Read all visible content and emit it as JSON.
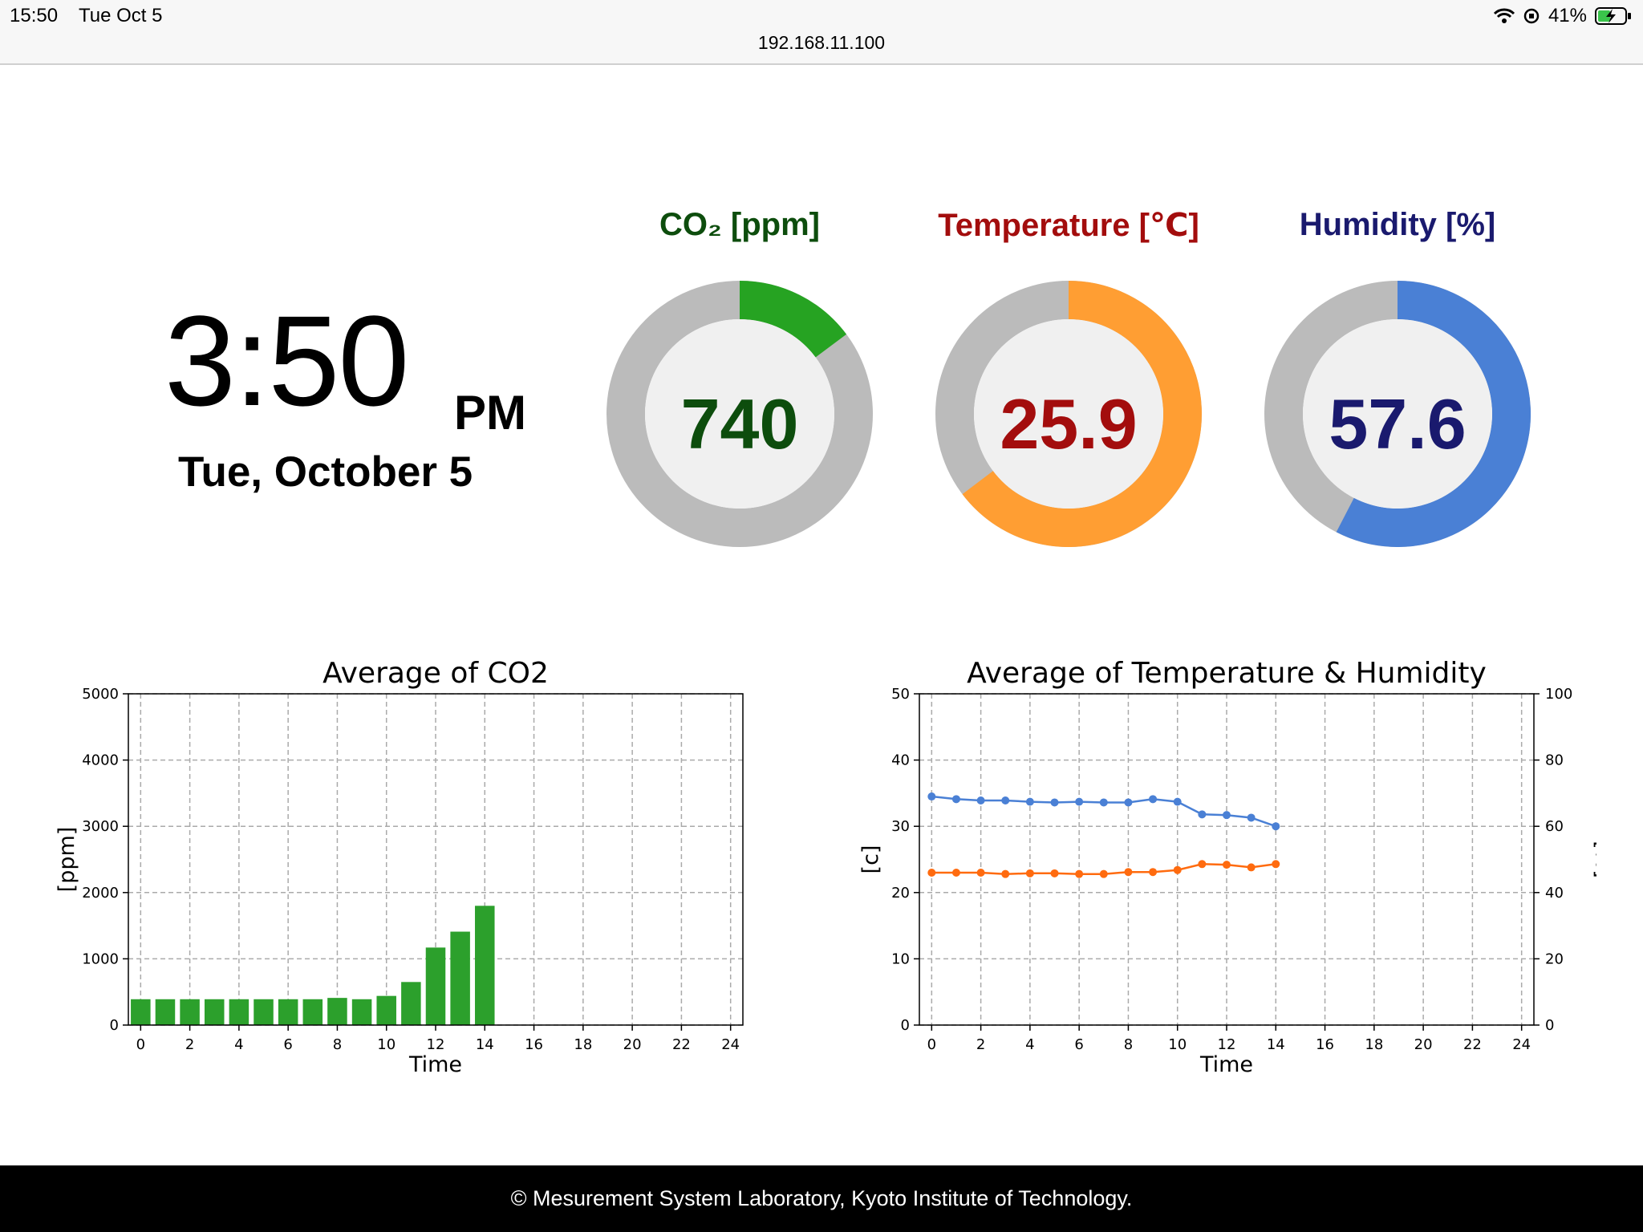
{
  "status_bar": {
    "time": "15:50",
    "date": "Tue Oct 5",
    "battery": "41%",
    "url": "192.168.11.100"
  },
  "clock": {
    "time": "3:50",
    "ampm": "PM",
    "date": "Tue, October 5"
  },
  "gauges": [
    {
      "title": "CO₂ [ppm]",
      "value": "740",
      "fraction": 0.148,
      "color": "#26a322",
      "text_color": "#0d4d0d"
    },
    {
      "title": "Temperature [℃]",
      "value": "25.9",
      "fraction": 0.647,
      "color": "#ff9e33",
      "text_color": "#a30d0d"
    },
    {
      "title": "Humidity [%]",
      "value": "57.6",
      "fraction": 0.576,
      "color": "#4a80d5",
      "text_color": "#1a1a6e"
    }
  ],
  "chart_data": [
    {
      "type": "bar",
      "title": "Average of CO2",
      "xlabel": "Time",
      "ylabel": "[ppm]",
      "xlim": [
        -0.5,
        24.5
      ],
      "ylim": [
        0,
        5000
      ],
      "xticks": [
        0,
        2,
        4,
        6,
        8,
        10,
        12,
        14,
        16,
        18,
        20,
        22,
        24
      ],
      "yticks": [
        0,
        1000,
        2000,
        3000,
        4000,
        5000
      ],
      "grid": true,
      "color": "#2ca02c",
      "x": [
        0,
        1,
        2,
        3,
        4,
        5,
        6,
        7,
        8,
        9,
        10,
        11,
        12,
        13,
        14
      ],
      "values": [
        390,
        390,
        390,
        390,
        390,
        390,
        390,
        390,
        410,
        390,
        440,
        650,
        1170,
        1410,
        1800
      ]
    },
    {
      "type": "line",
      "title": "Average of Temperature & Humidity",
      "xlabel": "Time",
      "ylabel": "[c]",
      "ylabel_right": "[%]",
      "xlim": [
        -0.5,
        24.5
      ],
      "ylim": [
        0,
        50
      ],
      "ylim_right": [
        0,
        100
      ],
      "xticks": [
        0,
        2,
        4,
        6,
        8,
        10,
        12,
        14,
        16,
        18,
        20,
        22,
        24
      ],
      "yticks": [
        0,
        10,
        20,
        30,
        40,
        50
      ],
      "yticks_right": [
        0,
        20,
        40,
        60,
        80,
        100
      ],
      "grid": true,
      "x": [
        0,
        1,
        2,
        3,
        4,
        5,
        6,
        7,
        8,
        9,
        10,
        11,
        12,
        13,
        14
      ],
      "series": [
        {
          "axis": "right",
          "color": "#4a80d5",
          "values": [
            69.0,
            68.2,
            67.8,
            67.8,
            67.4,
            67.2,
            67.4,
            67.2,
            67.2,
            68.2,
            67.4,
            63.6,
            63.4,
            62.6,
            60.0
          ]
        },
        {
          "axis": "left",
          "color": "#ff6b0f",
          "values": [
            23.0,
            23.0,
            23.0,
            22.8,
            22.9,
            22.9,
            22.8,
            22.8,
            23.1,
            23.1,
            23.4,
            24.3,
            24.2,
            23.8,
            24.3
          ]
        }
      ]
    }
  ],
  "footer": {
    "text": "© Mesurement System Laboratory, Kyoto Institute of Technology."
  }
}
